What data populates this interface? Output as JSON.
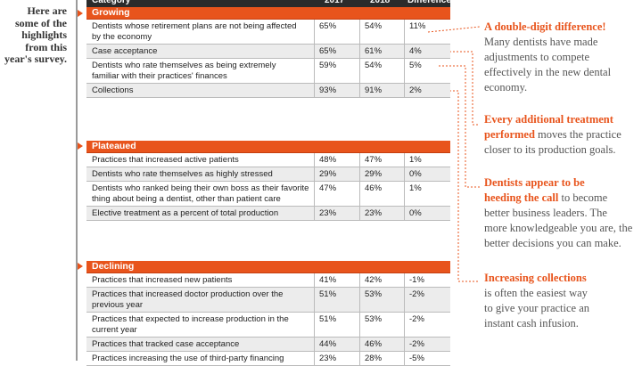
{
  "sidebar": "Here are some of the highlights from this year's survey.",
  "table": {
    "header": [
      "Category",
      "2017",
      "2018",
      "Difference"
    ],
    "sections": [
      {
        "name": "Growing",
        "rows": [
          [
            [
              "Dentists whose retirement plans are not being affected",
              "by the economy"
            ],
            "65%",
            "54%",
            "11%"
          ],
          [
            [
              "Case acceptance"
            ],
            "65%",
            "61%",
            "4%"
          ],
          [
            [
              "Dentists who rate themselves as being extremely",
              "familiar with their practices' finances"
            ],
            "59%",
            "54%",
            "5%"
          ],
          [
            [
              "Collections"
            ],
            "93%",
            "91%",
            "2%"
          ]
        ]
      },
      {
        "name": "Plateaued",
        "rows": [
          [
            [
              "Practices that increased active patients"
            ],
            "48%",
            "47%",
            "1%"
          ],
          [
            [
              "Dentists who rate themselves as highly stressed"
            ],
            "29%",
            "29%",
            "0%"
          ],
          [
            [
              "Dentists who ranked being their own boss as their favorite",
              "thing about being a dentist, other than patient care"
            ],
            "47%",
            "46%",
            "1%"
          ],
          [
            [
              "Elective treatment as a percent of total production"
            ],
            "23%",
            "23%",
            "0%"
          ]
        ]
      },
      {
        "name": "Declining",
        "rows": [
          [
            [
              "Practices that increased new patients"
            ],
            "41%",
            "42%",
            "-1%"
          ],
          [
            [
              "Practices that increased doctor production over the",
              "previous year"
            ],
            "51%",
            "53%",
            "-2%"
          ],
          [
            [
              "Practices that expected to increase production in the",
              "current year"
            ],
            "51%",
            "53%",
            "-2%"
          ],
          [
            [
              "Practices that tracked case acceptance"
            ],
            "44%",
            "46%",
            "-2%"
          ],
          [
            [
              "Practices increasing the use of third-party financing"
            ],
            "23%",
            "28%",
            "-5%"
          ]
        ]
      }
    ]
  },
  "notes": [
    {
      "lines": [
        {
          "strong": "A double-digit difference!"
        },
        {
          "text": "Many dentists have made"
        },
        {
          "text": "adjustments to compete"
        },
        {
          "text": "effectively in the new dental"
        },
        {
          "text": "economy."
        }
      ]
    },
    {
      "lines": [
        {
          "strong": "Every additional treatment"
        },
        {
          "strong": "performed",
          "text": " moves the practice"
        },
        {
          "text": "closer to its production goals."
        }
      ]
    },
    {
      "lines": [
        {
          "strong": "Dentists appear to be"
        },
        {
          "strong": "heeding the call",
          "text": " to become"
        },
        {
          "text": "better business leaders. The"
        },
        {
          "text": "more knowledgeable you are, the"
        },
        {
          "text": "better decisions you can make."
        }
      ]
    },
    {
      "lines": [
        {
          "strong": "Increasing collections"
        },
        {
          "text": "is often the easiest way"
        },
        {
          "text": "to give your practice an"
        },
        {
          "text": "instant cash infusion."
        }
      ]
    }
  ]
}
